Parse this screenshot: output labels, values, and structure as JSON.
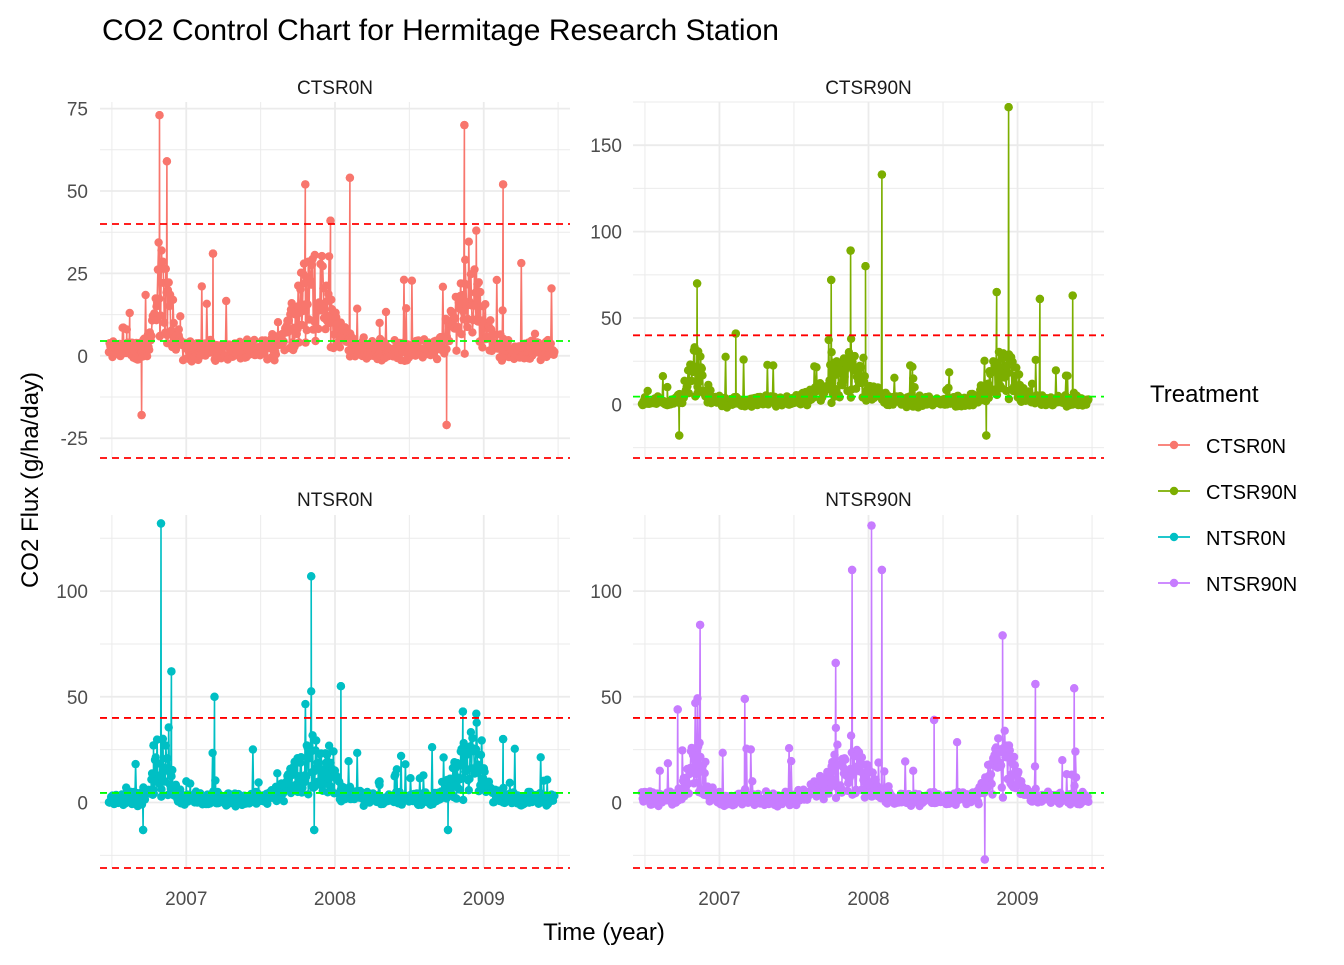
{
  "chart_data": {
    "type": "line",
    "title": "CO2 Control Chart for Hermitage Research Station",
    "xlabel": "Time (year)",
    "ylabel": "CO2 Flux (g/ha/day)",
    "xlim": [
      2006.42,
      2009.58
    ],
    "x_ticks": [
      2007,
      2008,
      2009
    ],
    "x_tick_labels": [
      "2007",
      "2008",
      "2009"
    ],
    "legend": {
      "title": "Treatment",
      "position": "right",
      "entries": [
        "CTSR0N",
        "CTSR90N",
        "NTSR0N",
        "NTSR90N"
      ]
    },
    "colors": {
      "CTSR0N": "#F8766D",
      "CTSR90N": "#7CAE00",
      "NTSR0N": "#00BFC4",
      "NTSR90N": "#C77CFF",
      "control_limit": "#FF0000",
      "center_line": "#00FF00",
      "grid": "#EBEBEB"
    },
    "panels": [
      {
        "name": "CTSR0N",
        "ylim": [
          -31,
          77
        ],
        "y_ticks": [
          -25,
          0,
          25,
          50,
          75
        ],
        "y_tick_labels": [
          "-25",
          "0",
          "25",
          "50",
          "75"
        ],
        "center_line": 4.5,
        "upper_control_limit": 40,
        "lower_control_limit": -31,
        "peaks": [
          {
            "x": 2006.62,
            "y": 13
          },
          {
            "x": 2006.7,
            "y": -18
          },
          {
            "x": 2006.82,
            "y": 73
          },
          {
            "x": 2006.87,
            "y": 59
          },
          {
            "x": 2006.96,
            "y": 12
          },
          {
            "x": 2007.18,
            "y": 31
          },
          {
            "x": 2007.8,
            "y": 52
          },
          {
            "x": 2007.97,
            "y": 41
          },
          {
            "x": 2008.1,
            "y": 54
          },
          {
            "x": 2008.75,
            "y": -21
          },
          {
            "x": 2008.87,
            "y": 70
          },
          {
            "x": 2009.13,
            "y": 52
          }
        ],
        "series": {
          "name": "CTSR0N",
          "x": [
            2006.5,
            2006.6,
            2006.7,
            2006.8,
            2006.82,
            2006.87,
            2006.95,
            2007.1,
            2007.18,
            2007.4,
            2007.6,
            2007.75,
            2007.8,
            2007.97,
            2008.1,
            2008.3,
            2008.6,
            2008.75,
            2008.87,
            2008.95,
            2009.13,
            2009.3,
            2009.45
          ],
          "y": [
            3,
            8,
            -18,
            15,
            73,
            59,
            8,
            2,
            31,
            3,
            5,
            15,
            52,
            41,
            54,
            10,
            5,
            -21,
            70,
            38,
            52,
            4,
            1
          ]
        }
      },
      {
        "name": "CTSR90N",
        "ylim": [
          -31,
          175
        ],
        "y_ticks": [
          0,
          50,
          100,
          150
        ],
        "y_tick_labels": [
          "0",
          "50",
          "100",
          "150"
        ],
        "center_line": 4.5,
        "upper_control_limit": 40,
        "lower_control_limit": -31,
        "peaks": [
          {
            "x": 2006.73,
            "y": -18
          },
          {
            "x": 2006.85,
            "y": 70
          },
          {
            "x": 2007.11,
            "y": 41
          },
          {
            "x": 2007.75,
            "y": 72
          },
          {
            "x": 2007.88,
            "y": 89
          },
          {
            "x": 2007.98,
            "y": 80
          },
          {
            "x": 2008.09,
            "y": 133
          },
          {
            "x": 2008.79,
            "y": -18
          },
          {
            "x": 2008.86,
            "y": 65
          },
          {
            "x": 2008.94,
            "y": 172
          },
          {
            "x": 2009.15,
            "y": 61
          },
          {
            "x": 2009.37,
            "y": 63
          }
        ],
        "series": {
          "name": "CTSR90N",
          "x": [
            2006.5,
            2006.65,
            2006.73,
            2006.85,
            2007.0,
            2007.11,
            2007.4,
            2007.6,
            2007.75,
            2007.88,
            2007.98,
            2008.09,
            2008.3,
            2008.6,
            2008.79,
            2008.86,
            2008.94,
            2009.15,
            2009.37,
            2009.45
          ],
          "y": [
            2,
            10,
            -18,
            70,
            5,
            41,
            3,
            2,
            72,
            89,
            80,
            133,
            15,
            5,
            -18,
            65,
            172,
            61,
            63,
            2
          ]
        }
      },
      {
        "name": "NTSR0N",
        "ylim": [
          -31,
          136
        ],
        "y_ticks": [
          0,
          50,
          100
        ],
        "y_tick_labels": [
          "0",
          "50",
          "100"
        ],
        "center_line": 4.5,
        "upper_control_limit": 40,
        "lower_control_limit": -31,
        "peaks": [
          {
            "x": 2006.71,
            "y": -13
          },
          {
            "x": 2006.78,
            "y": 27
          },
          {
            "x": 2006.83,
            "y": 132
          },
          {
            "x": 2006.9,
            "y": 62
          },
          {
            "x": 2007.19,
            "y": 50
          },
          {
            "x": 2007.84,
            "y": 107
          },
          {
            "x": 2007.86,
            "y": -13
          },
          {
            "x": 2008.04,
            "y": 55
          },
          {
            "x": 2008.76,
            "y": -13
          },
          {
            "x": 2008.86,
            "y": 43
          },
          {
            "x": 2009.13,
            "y": 30
          }
        ],
        "series": {
          "name": "NTSR0N",
          "x": [
            2006.5,
            2006.65,
            2006.71,
            2006.78,
            2006.83,
            2006.9,
            2007.0,
            2007.19,
            2007.4,
            2007.6,
            2007.75,
            2007.84,
            2007.86,
            2008.04,
            2008.3,
            2008.6,
            2008.76,
            2008.86,
            2008.95,
            2009.13,
            2009.3,
            2009.45
          ],
          "y": [
            2,
            5,
            -13,
            27,
            132,
            62,
            10,
            50,
            3,
            2,
            5,
            107,
            -13,
            55,
            10,
            3,
            -13,
            43,
            42,
            30,
            5,
            1
          ]
        }
      },
      {
        "name": "NTSR90N",
        "ylim": [
          -31,
          136
        ],
        "y_ticks": [
          0,
          50,
          100
        ],
        "y_tick_labels": [
          "0",
          "50",
          "100"
        ],
        "center_line": 4.5,
        "upper_control_limit": 40,
        "lower_control_limit": -31,
        "peaks": [
          {
            "x": 2006.72,
            "y": 44
          },
          {
            "x": 2006.87,
            "y": 84
          },
          {
            "x": 2007.17,
            "y": 49
          },
          {
            "x": 2007.78,
            "y": 66
          },
          {
            "x": 2007.89,
            "y": 110
          },
          {
            "x": 2008.02,
            "y": 131
          },
          {
            "x": 2008.09,
            "y": 110
          },
          {
            "x": 2008.44,
            "y": 39
          },
          {
            "x": 2008.78,
            "y": -27
          },
          {
            "x": 2008.9,
            "y": 79
          },
          {
            "x": 2009.12,
            "y": 56
          },
          {
            "x": 2009.38,
            "y": 54
          }
        ],
        "series": {
          "name": "NTSR90N",
          "x": [
            2006.5,
            2006.6,
            2006.72,
            2006.87,
            2007.0,
            2007.17,
            2007.4,
            2007.6,
            2007.78,
            2007.89,
            2008.02,
            2008.09,
            2008.3,
            2008.44,
            2008.6,
            2008.78,
            2008.9,
            2009.12,
            2009.3,
            2009.38,
            2009.45
          ],
          "y": [
            5,
            15,
            44,
            84,
            5,
            49,
            3,
            5,
            66,
            110,
            131,
            110,
            15,
            39,
            5,
            -27,
            79,
            56,
            20,
            54,
            2
          ]
        }
      }
    ]
  }
}
